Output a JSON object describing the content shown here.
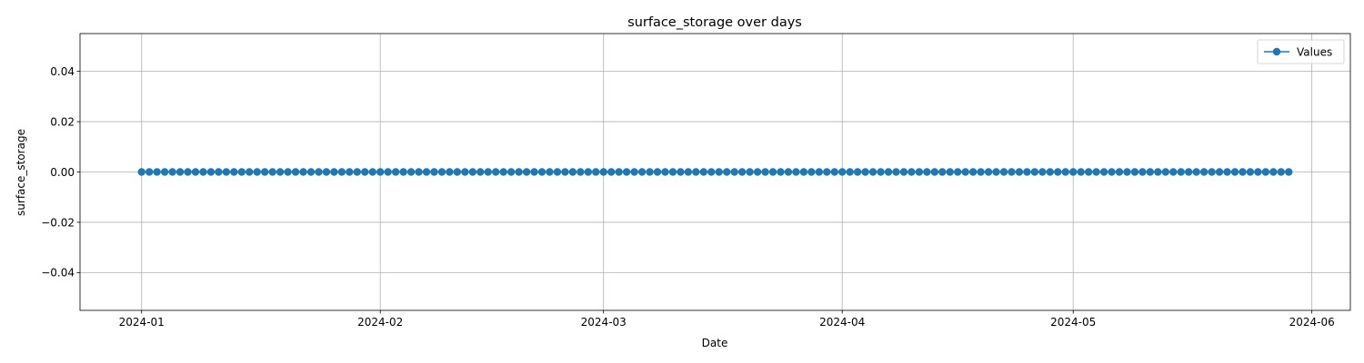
{
  "chart_data": {
    "type": "line",
    "title": "surface_storage over days",
    "xlabel": "Date",
    "ylabel": "surface_storage",
    "x_start": "2024-01-01",
    "x_end": "2024-05-29",
    "x_step_days": 1,
    "constant_value": 0.0,
    "xlim": [
      "2023-12-24",
      "2024-06-06"
    ],
    "ylim": [
      -0.055,
      0.055
    ],
    "x_ticks": [
      "2024-01-01",
      "2024-02-01",
      "2024-03-01",
      "2024-04-01",
      "2024-05-01",
      "2024-06-01"
    ],
    "x_tick_labels": [
      "2024-01",
      "2024-02",
      "2024-03",
      "2024-04",
      "2024-05",
      "2024-06"
    ],
    "y_ticks": [
      -0.04,
      -0.02,
      0.0,
      0.02,
      0.04
    ],
    "y_tick_labels": [
      "−0.04",
      "−0.02",
      "0.00",
      "0.02",
      "0.04"
    ],
    "grid": true,
    "legend_position": "top-right",
    "series": [
      {
        "name": "Values",
        "color": "#1f77b4",
        "marker": "circle"
      }
    ]
  }
}
